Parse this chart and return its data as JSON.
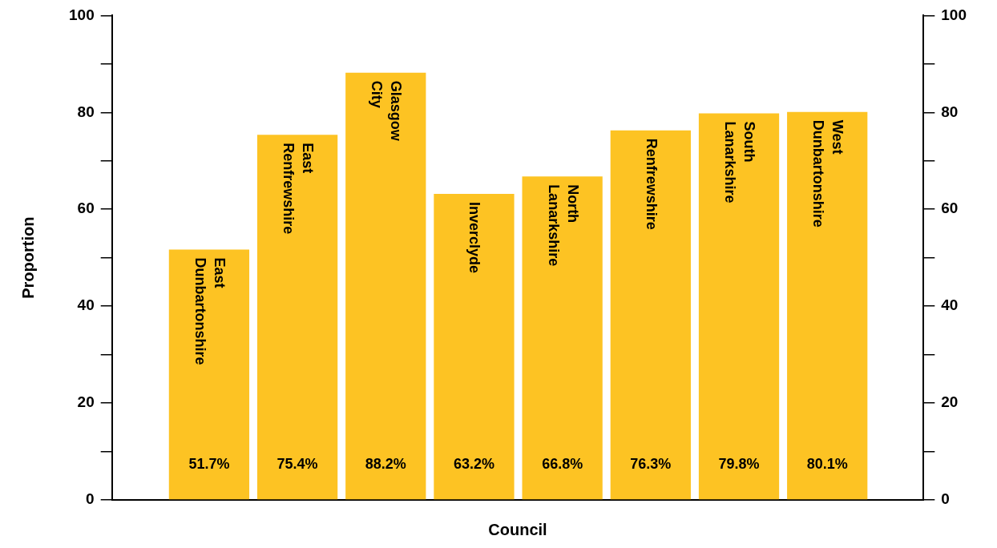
{
  "chart_data": {
    "type": "bar",
    "xlabel": "Council",
    "ylabel": "Proportion",
    "categories": [
      "East Dunbartonshire",
      "East Renfrewshire",
      "Glasgow City",
      "Inverclyde",
      "North Lanarkshire",
      "Renfrewshire",
      "South Lanarkshire",
      "West Dunbartonshire"
    ],
    "values": [
      51.7,
      75.4,
      88.2,
      63.2,
      66.8,
      76.3,
      79.8,
      80.1
    ],
    "value_labels": [
      "51.7%",
      "75.4%",
      "88.2%",
      "63.2%",
      "66.8%",
      "76.3%",
      "79.8%",
      "80.1%"
    ],
    "color": "#fdc323",
    "ylim": [
      0,
      100
    ],
    "yticks": [
      0,
      {
        "value": 10,
        "label": null
      },
      20,
      {
        "value": 30,
        "label": null
      },
      40,
      {
        "value": 50,
        "label": null
      },
      60,
      {
        "value": 70,
        "label": null
      },
      80,
      {
        "value": 90,
        "label": null
      },
      100
    ],
    "y2lim": [
      0,
      100
    ],
    "y2ticks": [
      0,
      {
        "value": 10,
        "label": null
      },
      20,
      {
        "value": 30,
        "label": null
      },
      40,
      {
        "value": 50,
        "label": null
      },
      60,
      {
        "value": 70,
        "label": null
      },
      80,
      {
        "value": 90,
        "label": null
      },
      100
    ],
    "grid": false,
    "legend": false
  }
}
